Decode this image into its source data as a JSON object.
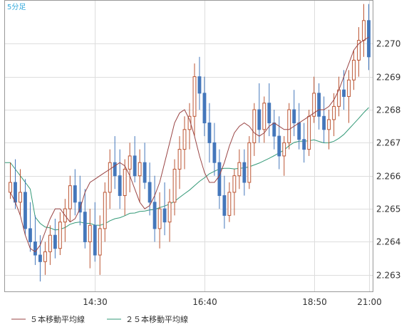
{
  "chart_data": {
    "type": "candlestick",
    "corner_label": "5分足",
    "x_tick_labels": [
      "14:30",
      "16:40",
      "18:50",
      "21:00"
    ],
    "y_ticks": [
      2.263,
      2.264,
      2.265,
      2.266,
      2.267,
      2.268,
      2.269,
      2.27
    ],
    "ylim": [
      2.2625,
      2.2713
    ],
    "grid": true,
    "colors": {
      "up": "#bb5533",
      "down": "#4477bb",
      "ma5": "#994444",
      "ma25": "#339977",
      "grid": "#dddddd"
    },
    "legend": [
      {
        "label": "５本移動平均線",
        "color": "#994444"
      },
      {
        "label": "２５本移動平均線",
        "color": "#339977"
      }
    ],
    "candles": [
      [
        2.2655,
        2.2664,
        2.2653,
        2.2658
      ],
      [
        2.2658,
        2.2665,
        2.265,
        2.2652
      ],
      [
        2.2652,
        2.2662,
        2.2648,
        2.2655
      ],
      [
        2.2655,
        2.2659,
        2.2642,
        2.2644
      ],
      [
        2.2644,
        2.2652,
        2.2637,
        2.264
      ],
      [
        2.264,
        2.2648,
        2.2633,
        2.2636
      ],
      [
        2.2636,
        2.2642,
        2.2628,
        2.2634
      ],
      [
        2.2634,
        2.264,
        2.263,
        2.2637
      ],
      [
        2.2637,
        2.2645,
        2.2633,
        2.2642
      ],
      [
        2.2642,
        2.2647,
        2.2635,
        2.2638
      ],
      [
        2.2638,
        2.2649,
        2.2636,
        2.2646
      ],
      [
        2.2646,
        2.2653,
        2.264,
        2.265
      ],
      [
        2.265,
        2.266,
        2.2646,
        2.2657
      ],
      [
        2.2657,
        2.2662,
        2.2648,
        2.2652
      ],
      [
        2.2652,
        2.266,
        2.2645,
        2.2649
      ],
      [
        2.2649,
        2.2656,
        2.2638,
        2.264
      ],
      [
        2.264,
        2.265,
        2.2632,
        2.2645
      ],
      [
        2.2645,
        2.2652,
        2.2634,
        2.2636
      ],
      [
        2.2636,
        2.2648,
        2.263,
        2.2644
      ],
      [
        2.2644,
        2.2658,
        2.264,
        2.2655
      ],
      [
        2.2655,
        2.2668,
        2.265,
        2.2664
      ],
      [
        2.2664,
        2.2672,
        2.2656,
        2.266
      ],
      [
        2.266,
        2.2668,
        2.265,
        2.2654
      ],
      [
        2.2654,
        2.2665,
        2.2648,
        2.2662
      ],
      [
        2.2662,
        2.267,
        2.2655,
        2.2666
      ],
      [
        2.2666,
        2.2672,
        2.2658,
        2.266
      ],
      [
        2.266,
        2.2668,
        2.2652,
        2.2664
      ],
      [
        2.2664,
        2.267,
        2.2656,
        2.2658
      ],
      [
        2.2658,
        2.2664,
        2.2648,
        2.2652
      ],
      [
        2.2652,
        2.266,
        2.264,
        2.2644
      ],
      [
        2.2644,
        2.2655,
        2.2638,
        2.265
      ],
      [
        2.265,
        2.2658,
        2.2642,
        2.2646
      ],
      [
        2.2646,
        2.2656,
        2.264,
        2.2652
      ],
      [
        2.2652,
        2.2665,
        2.2648,
        2.2662
      ],
      [
        2.2662,
        2.2672,
        2.2656,
        2.2668
      ],
      [
        2.2668,
        2.2678,
        2.2662,
        2.2674
      ],
      [
        2.2674,
        2.2682,
        2.2668,
        2.2678
      ],
      [
        2.2678,
        2.2694,
        2.2672,
        2.269
      ],
      [
        2.269,
        2.2696,
        2.268,
        2.2685
      ],
      [
        2.2685,
        2.269,
        2.2672,
        2.2676
      ],
      [
        2.2676,
        2.2682,
        2.2664,
        2.267
      ],
      [
        2.267,
        2.2676,
        2.266,
        2.2664
      ],
      [
        2.2664,
        2.2668,
        2.265,
        2.2654
      ],
      [
        2.2654,
        2.266,
        2.2644,
        2.2648
      ],
      [
        2.2648,
        2.2658,
        2.2646,
        2.2655
      ],
      [
        2.2655,
        2.2662,
        2.2648,
        2.266
      ],
      [
        2.266,
        2.2668,
        2.2656,
        2.2664
      ],
      [
        2.2664,
        2.2668,
        2.2654,
        2.2658
      ],
      [
        2.2658,
        2.2672,
        2.2656,
        2.267
      ],
      [
        2.267,
        2.2682,
        2.2666,
        2.268
      ],
      [
        2.268,
        2.2688,
        2.267,
        2.2674
      ],
      [
        2.2674,
        2.2684,
        2.267,
        2.2682
      ],
      [
        2.2682,
        2.2688,
        2.2672,
        2.2676
      ],
      [
        2.2676,
        2.268,
        2.2668,
        2.2672
      ],
      [
        2.2672,
        2.2678,
        2.2662,
        2.2666
      ],
      [
        2.2666,
        2.2672,
        2.266,
        2.267
      ],
      [
        2.267,
        2.2682,
        2.2668,
        2.268
      ],
      [
        2.268,
        2.2686,
        2.2672,
        2.2676
      ],
      [
        2.2676,
        2.2682,
        2.2668,
        2.2671
      ],
      [
        2.2671,
        2.2676,
        2.2664,
        2.2668
      ],
      [
        2.2668,
        2.268,
        2.2666,
        2.2678
      ],
      [
        2.2678,
        2.269,
        2.2676,
        2.2685
      ],
      [
        2.2685,
        2.2688,
        2.2674,
        2.2678
      ],
      [
        2.2678,
        2.2684,
        2.267,
        2.2674
      ],
      [
        2.2674,
        2.268,
        2.2668,
        2.2677
      ],
      [
        2.2677,
        2.2685,
        2.2672,
        2.2681
      ],
      [
        2.2681,
        2.269,
        2.2678,
        2.2686
      ],
      [
        2.2686,
        2.2692,
        2.268,
        2.2684
      ],
      [
        2.2684,
        2.2692,
        2.2676,
        2.2689
      ],
      [
        2.2689,
        2.2698,
        2.2686,
        2.2695
      ],
      [
        2.2695,
        2.2705,
        2.269,
        2.2701
      ],
      [
        2.2701,
        2.2712,
        2.2696,
        2.2707
      ],
      [
        2.2707,
        2.2712,
        2.2692,
        2.2696
      ]
    ],
    "ma5": [
      2.2655,
      2.2652,
      2.2648,
      2.2642,
      2.2638,
      2.2637,
      2.2639,
      2.2643,
      2.2647,
      2.265,
      2.265,
      2.2648,
      2.2646,
      2.2647,
      2.265,
      2.2655,
      2.2658,
      2.2659,
      2.266,
      2.2661,
      2.2662,
      2.2663,
      2.2664,
      2.2663,
      2.266,
      2.2656,
      2.2652,
      2.265,
      2.2651,
      2.2654,
      2.2658,
      2.2664,
      2.267,
      2.2676,
      2.2679,
      2.268,
      2.2677,
      2.2672,
      2.2666,
      2.2661,
      2.2658,
      2.2658,
      2.266,
      2.2664,
      2.2669,
      2.2673,
      2.2675,
      2.2676,
      2.2675,
      2.2673,
      2.2672,
      2.2673,
      2.2675,
      2.2676,
      2.2675,
      2.2674,
      2.2674,
      2.2675,
      2.2676,
      2.2677,
      2.2678,
      2.2679,
      2.268,
      2.268,
      2.2681,
      2.2683,
      2.2686,
      2.269,
      2.2694,
      2.2698,
      2.27,
      2.2701,
      2.2702
    ]
  }
}
